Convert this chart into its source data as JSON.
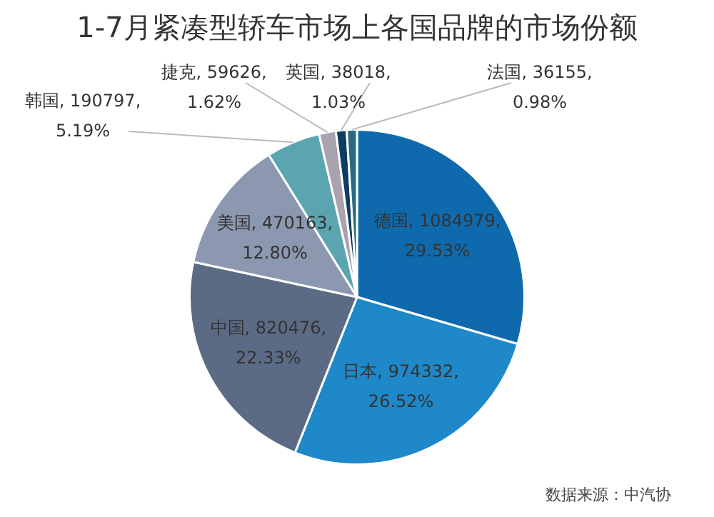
{
  "chart_data": {
    "type": "pie",
    "title": "1-7月紧凑型轿车市场上各国品牌的市场份额",
    "categories": [
      "德国",
      "日本",
      "中国",
      "美国",
      "韩国",
      "捷克",
      "英国",
      "法国"
    ],
    "values": [
      1084979,
      974332,
      820476,
      470163,
      190797,
      59626,
      38018,
      36155
    ],
    "value_labels": [
      "1084979, 29.53%",
      "974332, 26.52%",
      "820476, 22.33%",
      "470163, 12.80%",
      "190797, 5.19%",
      "59626, 1.62%",
      "38018, 1.03%",
      "36155, 0.98%"
    ],
    "colors": [
      "#0f6aad",
      "#1e88c8",
      "#5b6b86",
      "#8c97b0",
      "#5aa5b0",
      "#a9a3b0",
      "#0d3d63",
      "#2a6a80"
    ],
    "legend": false,
    "annotations": [
      "数据来源：中汽协"
    ]
  }
}
